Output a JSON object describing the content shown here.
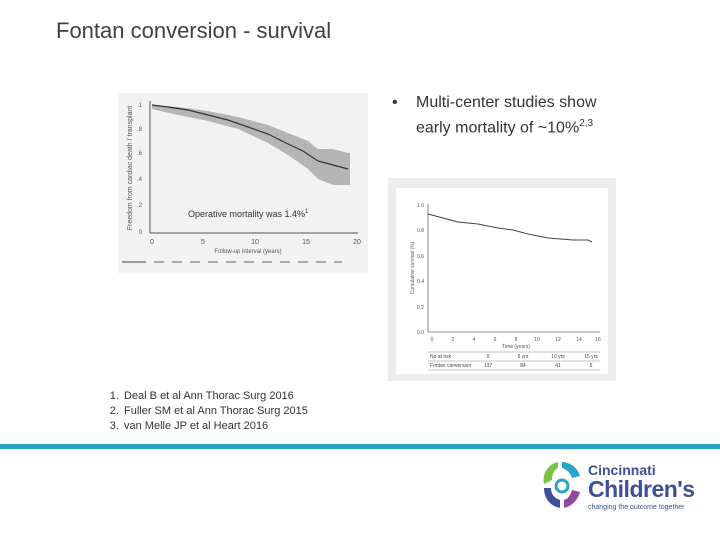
{
  "slide": {
    "title": "Fontan conversion - survival",
    "bullet": {
      "marker": "•",
      "line1": "Multi-center studies show",
      "line2": "early mortality of ~10%",
      "superscript": "2,3"
    },
    "figure1": {
      "annotation": "Operative mortality was 1.4%",
      "annotation_ref": "1",
      "ylabel": "Freedom from cardiac death / transplant",
      "xlabel": "Follow-up interval (years)",
      "x_ticks": [
        "0",
        "5",
        "10",
        "15",
        "20"
      ],
      "y_ticks": [
        "1",
        ".8",
        ".6",
        ".4",
        ".2",
        "0"
      ]
    },
    "figure2": {
      "ylabel": "Cumulative survival (%)",
      "xlabel": "Time (years)",
      "y_ticks": [
        "1.0",
        "0.8",
        "0.6",
        "0.4",
        "0.2",
        "0.0"
      ],
      "x_ticks": [
        "0",
        "2",
        "4",
        "6",
        "8",
        "10",
        "12",
        "14",
        "16"
      ],
      "table_header": [
        "No at risk",
        "0",
        "5 yrs",
        "10 yrs",
        "15 yrs"
      ],
      "table_row": [
        "Fontan conversion",
        "137",
        "84",
        "41",
        "5"
      ]
    },
    "references": [
      "Deal B et al Ann Thorac Surg 2016",
      "Fuller SM et al Ann Thorac Surg 2015",
      "van Melle JP et al Heart 2016"
    ],
    "logo": {
      "line1": "Cincinnati",
      "line2": "Children's",
      "tagline": "changing the outcome together"
    },
    "colors": {
      "accent_bar": "#2aa4c9",
      "logo_blue": "#3d4f9a"
    }
  }
}
